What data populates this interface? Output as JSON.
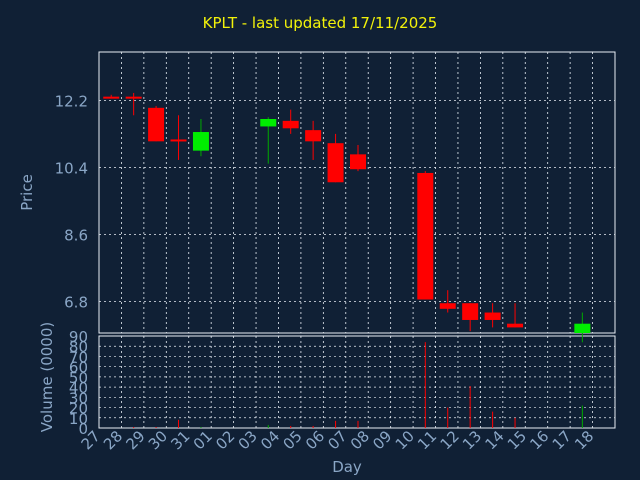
{
  "chart_data": {
    "title": "KPLT - last updated 17/11/2025",
    "type": "candlestick",
    "xlabel": "Day",
    "price_panel": {
      "ylabel": "Price",
      "yticks": [
        "12.2",
        "10.4",
        "8.6",
        "6.8"
      ],
      "ylim": [
        5.95,
        13.5
      ]
    },
    "volume_panel": {
      "ylabel": "Volume (0000)",
      "yticks": [
        "0",
        "10",
        "20",
        "30",
        "40",
        "50",
        "60",
        "70",
        "80",
        "90"
      ],
      "ylim": [
        0,
        90
      ]
    },
    "x_ticks": [
      "27",
      "28",
      "29",
      "30",
      "31",
      "01",
      "02",
      "03",
      "04",
      "05",
      "06",
      "07",
      "08",
      "09",
      "10",
      "11",
      "12",
      "13",
      "14",
      "15",
      "16",
      "17",
      "18"
    ],
    "candles": [
      {
        "day": "27",
        "open": 12.3,
        "high": 12.35,
        "low": 12.25,
        "close": 12.25,
        "volume": 0
      },
      {
        "day": "28",
        "open": 12.3,
        "high": 12.4,
        "low": 11.8,
        "close": 12.25,
        "volume": 1
      },
      {
        "day": "29",
        "open": 12.0,
        "high": 12.05,
        "low": 11.1,
        "close": 11.1,
        "volume": 1
      },
      {
        "day": "30",
        "open": 11.15,
        "high": 11.8,
        "low": 10.6,
        "close": 11.1,
        "volume": 8
      },
      {
        "day": "31",
        "open": 10.85,
        "high": 11.7,
        "low": 10.7,
        "close": 11.35,
        "volume": 1
      },
      {
        "day": "03",
        "open": 11.5,
        "high": 11.75,
        "low": 10.5,
        "close": 11.7,
        "volume": 3
      },
      {
        "day": "04",
        "open": 11.65,
        "high": 11.95,
        "low": 11.3,
        "close": 11.45,
        "volume": 2
      },
      {
        "day": "05",
        "open": 11.4,
        "high": 11.65,
        "low": 10.6,
        "close": 11.1,
        "volume": 2
      },
      {
        "day": "06",
        "open": 11.05,
        "high": 11.3,
        "low": 10.0,
        "close": 10.0,
        "volume": 7
      },
      {
        "day": "07",
        "open": 10.75,
        "high": 11.0,
        "low": 10.3,
        "close": 10.35,
        "volume": 7
      },
      {
        "day": "10",
        "open": 10.25,
        "high": 10.3,
        "low": 6.85,
        "close": 6.85,
        "volume": 84
      },
      {
        "day": "11",
        "open": 6.75,
        "high": 7.1,
        "low": 6.5,
        "close": 6.6,
        "volume": 20
      },
      {
        "day": "12",
        "open": 6.75,
        "high": 6.75,
        "low": 6.0,
        "close": 6.3,
        "volume": 41
      },
      {
        "day": "13",
        "open": 6.5,
        "high": 6.75,
        "low": 6.1,
        "close": 6.3,
        "volume": 16
      },
      {
        "day": "14",
        "open": 6.2,
        "high": 6.75,
        "low": 6.1,
        "close": 6.1,
        "volume": 10
      },
      {
        "day": "17",
        "open": 5.95,
        "high": 6.5,
        "low": 5.7,
        "close": 6.2,
        "volume": 22
      }
    ],
    "colors": {
      "background": "#102035",
      "panel": "#102035",
      "grid": "#e8eef5",
      "axis_text": "#8aa6c6",
      "title": "#f2f20a",
      "up": "#00ee00",
      "down": "#ff0000",
      "wick_up": "#00aa00",
      "wick_down": "#ff0000"
    },
    "grid": true,
    "legend": "none"
  }
}
